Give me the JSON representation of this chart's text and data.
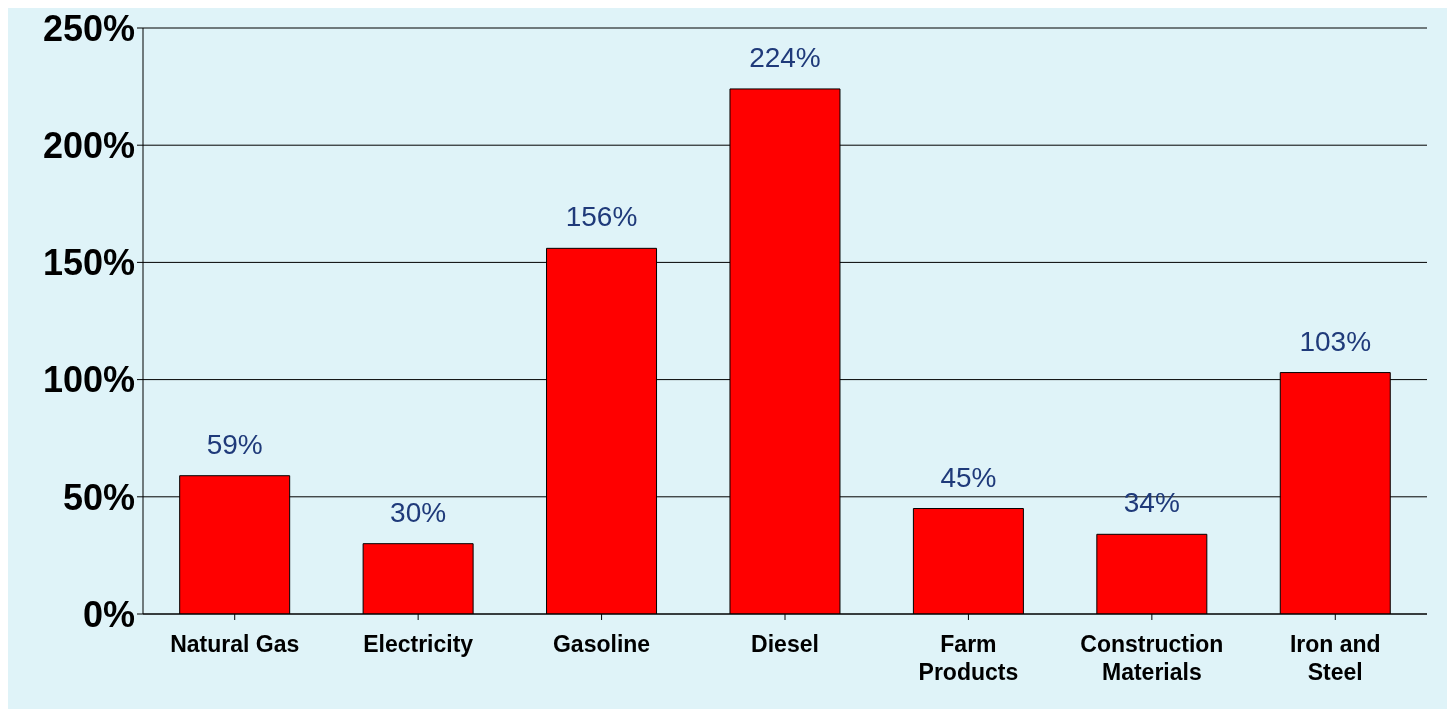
{
  "chart_data": {
    "type": "bar",
    "categories": [
      "Natural Gas",
      "Electricity",
      "Gasoline",
      "Diesel",
      "Farm Products",
      "Construction Materials",
      "Iron and Steel"
    ],
    "values": [
      59,
      30,
      156,
      224,
      45,
      34,
      103
    ],
    "value_labels": [
      "59%",
      "30%",
      "156%",
      "224%",
      "45%",
      "34%",
      "103%"
    ],
    "color": "#ff0000",
    "ylim": [
      0,
      250
    ],
    "yticks": [
      {
        "value": 0,
        "label": "0%"
      },
      {
        "value": 50,
        "label": "50%"
      },
      {
        "value": 100,
        "label": "100%"
      },
      {
        "value": 150,
        "label": "150%"
      },
      {
        "value": 200,
        "label": "200%"
      },
      {
        "value": 250,
        "label": "250%"
      }
    ],
    "grid": "y"
  }
}
